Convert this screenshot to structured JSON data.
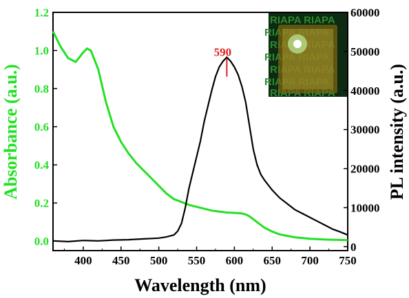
{
  "chart_data": {
    "type": "line",
    "xlabel": "Wavelength (nm)",
    "ylabel_left": "Absorbance (a.u.)",
    "ylabel_right": "PL intensity (a.u.)",
    "xlim": [
      360,
      750
    ],
    "ylim_left": [
      -0.05,
      1.2
    ],
    "ylim_right": [
      -1000,
      60000
    ],
    "x_ticks": [
      400,
      450,
      500,
      550,
      600,
      650,
      700,
      750
    ],
    "y_left_ticks": [
      "0.0",
      "0.2",
      "0.4",
      "0.6",
      "0.8",
      "1.0",
      "1.2"
    ],
    "y_right_ticks": [
      "0",
      "10000",
      "20000",
      "30000",
      "40000",
      "50000",
      "60000"
    ],
    "colors": {
      "absorbance": "#22e022",
      "pl": "#000000",
      "annotation": "#e02020"
    },
    "annotation": {
      "text": "590",
      "x": 590,
      "y_right": 46000
    },
    "inset": {
      "text": "RIAPA",
      "description_icon": "photo-of-luminescent-film"
    },
    "series": [
      {
        "axis": "left",
        "color": "#22e022",
        "x": [
          360,
          370,
          380,
          390,
          400,
          405,
          410,
          420,
          430,
          440,
          450,
          460,
          470,
          480,
          490,
          500,
          510,
          520,
          530,
          540,
          550,
          560,
          570,
          580,
          590,
          600,
          610,
          615,
          620,
          630,
          640,
          650,
          660,
          680,
          700,
          720,
          750
        ],
        "values": [
          1.1,
          1.02,
          0.96,
          0.94,
          0.99,
          1.01,
          1.0,
          0.9,
          0.73,
          0.6,
          0.52,
          0.46,
          0.41,
          0.37,
          0.33,
          0.29,
          0.25,
          0.22,
          0.205,
          0.19,
          0.18,
          0.17,
          0.16,
          0.155,
          0.15,
          0.148,
          0.145,
          0.14,
          0.13,
          0.1,
          0.07,
          0.05,
          0.035,
          0.02,
          0.012,
          0.008,
          0.005
        ]
      },
      {
        "axis": "right",
        "color": "#000000",
        "x": [
          360,
          380,
          400,
          420,
          440,
          460,
          480,
          500,
          510,
          520,
          525,
          530,
          535,
          540,
          545,
          550,
          555,
          560,
          565,
          570,
          575,
          580,
          585,
          590,
          595,
          600,
          605,
          610,
          615,
          620,
          625,
          630,
          635,
          640,
          650,
          660,
          670,
          680,
          690,
          700,
          710,
          720,
          730,
          740,
          750
        ],
        "values": [
          1500,
          1300,
          1600,
          1500,
          1700,
          1800,
          2000,
          2200,
          2500,
          3000,
          4000,
          6000,
          10000,
          15000,
          19000,
          23000,
          27000,
          32000,
          36000,
          40000,
          43500,
          46000,
          47500,
          48500,
          47500,
          46000,
          44000,
          41000,
          37000,
          31000,
          25000,
          21000,
          18500,
          17000,
          14500,
          12500,
          11000,
          9500,
          8500,
          7500,
          6500,
          5500,
          4500,
          3800,
          3000
        ]
      }
    ]
  }
}
